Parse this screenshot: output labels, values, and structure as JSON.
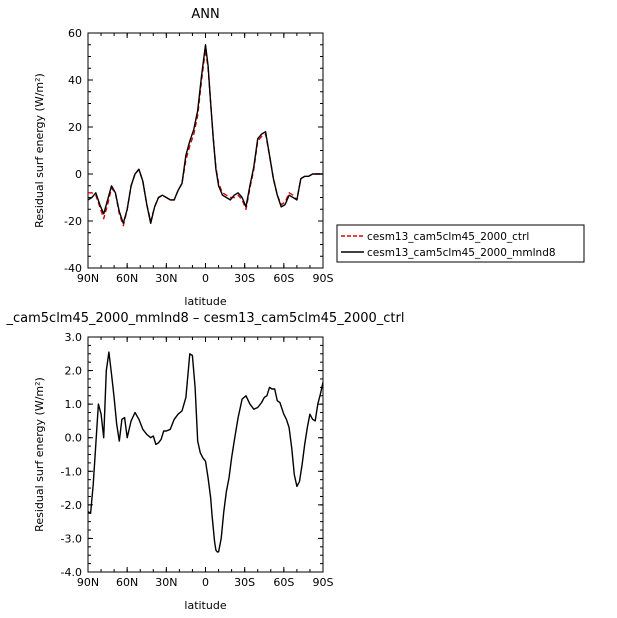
{
  "chart_data": [
    {
      "type": "line",
      "title": "ANN",
      "xlabel": "latitude",
      "ylabel": "Residual surf energy  (W/m²)",
      "xlim": [
        -90,
        90
      ],
      "ylim": [
        -40,
        60
      ],
      "x_ticks": [
        {
          "value": -90,
          "label": "90N"
        },
        {
          "value": -60,
          "label": "60N"
        },
        {
          "value": -30,
          "label": "30N"
        },
        {
          "value": 0,
          "label": "0"
        },
        {
          "value": 30,
          "label": "30S"
        },
        {
          "value": 60,
          "label": "60S"
        },
        {
          "value": 90,
          "label": "90S"
        }
      ],
      "y_ticks": [
        {
          "value": -40,
          "label": "-40"
        },
        {
          "value": -20,
          "label": "-20"
        },
        {
          "value": 0,
          "label": "0"
        },
        {
          "value": 20,
          "label": "20"
        },
        {
          "value": 40,
          "label": "40"
        },
        {
          "value": 60,
          "label": "60"
        }
      ],
      "legend": {
        "placement": "right-outside"
      },
      "series": [
        {
          "name": "cesm13_cam5clm45_2000_ctrl",
          "color": "#dd0000",
          "style": "dashed",
          "x": [
            -90,
            -87,
            -84,
            -81,
            -78,
            -75,
            -72,
            -69,
            -66,
            -63,
            -60,
            -57,
            -54,
            -51,
            -48,
            -45,
            -42,
            -39,
            -36,
            -33,
            -30,
            -27,
            -24,
            -21,
            -18,
            -15,
            -12,
            -9,
            -6,
            -3,
            0,
            2,
            4,
            6,
            8,
            10,
            13,
            16,
            19,
            22,
            25,
            28,
            31,
            34,
            37,
            40,
            43,
            46,
            49,
            52,
            55,
            58,
            61,
            64,
            67,
            70,
            73,
            76,
            79,
            82,
            85,
            88,
            90
          ],
          "y": [
            -8,
            -8,
            -9,
            -14,
            -19,
            -13,
            -6,
            -8,
            -17,
            -22,
            -15,
            -5,
            0,
            2,
            -3,
            -13,
            -20,
            -14,
            -10,
            -9,
            -10,
            -11,
            -11,
            -7,
            -4,
            6,
            12,
            17,
            25,
            40,
            53,
            45,
            30,
            15,
            3,
            -4,
            -8,
            -9,
            -10,
            -10,
            -9,
            -11,
            -15,
            -6,
            2,
            14,
            16,
            17,
            8,
            -2,
            -9,
            -13,
            -12,
            -8,
            -9,
            -11,
            -2,
            -1,
            -1,
            0,
            0,
            0,
            0
          ]
        },
        {
          "name": "cesm13_cam5clm45_2000_mmlnd8",
          "color": "#000000",
          "style": "solid",
          "x": [
            -90,
            -87,
            -84,
            -81,
            -78,
            -75,
            -72,
            -69,
            -66,
            -63,
            -60,
            -57,
            -54,
            -51,
            -48,
            -45,
            -42,
            -39,
            -36,
            -33,
            -30,
            -27,
            -24,
            -21,
            -18,
            -15,
            -12,
            -9,
            -6,
            -3,
            0,
            2,
            4,
            6,
            8,
            10,
            13,
            16,
            19,
            22,
            25,
            28,
            31,
            34,
            37,
            40,
            43,
            46,
            49,
            52,
            55,
            58,
            61,
            64,
            67,
            70,
            73,
            76,
            79,
            82,
            85,
            88,
            90
          ],
          "y": [
            -11,
            -10,
            -8,
            -13,
            -17,
            -11,
            -5,
            -8,
            -16,
            -21,
            -15,
            -5,
            0,
            2,
            -3,
            -13,
            -21,
            -14,
            -10,
            -9,
            -10,
            -11,
            -11,
            -7,
            -4,
            8,
            14,
            19,
            27,
            42,
            55,
            46,
            30,
            15,
            2,
            -5,
            -9,
            -10,
            -11,
            -9,
            -8,
            -10,
            -14,
            -5,
            3,
            15,
            17,
            18,
            8,
            -2,
            -9,
            -14,
            -13,
            -9,
            -10,
            -11,
            -2,
            -1,
            -1,
            0,
            0,
            0,
            0
          ]
        }
      ]
    },
    {
      "type": "line",
      "title": "_cam5clm45_2000_mmlnd8 – cesm13_cam5clm45_2000_ctrl",
      "xlabel": "latitude",
      "ylabel": "Residual surf energy  (W/m²)",
      "xlim": [
        -90,
        90
      ],
      "ylim": [
        -4,
        3
      ],
      "x_ticks": [
        {
          "value": -90,
          "label": "90N"
        },
        {
          "value": -60,
          "label": "60N"
        },
        {
          "value": -30,
          "label": "30N"
        },
        {
          "value": 0,
          "label": "0"
        },
        {
          "value": 30,
          "label": "30S"
        },
        {
          "value": 60,
          "label": "60S"
        },
        {
          "value": 90,
          "label": "90S"
        }
      ],
      "y_ticks": [
        {
          "value": -4,
          "label": "-4.0"
        },
        {
          "value": -3,
          "label": "-3.0"
        },
        {
          "value": -2,
          "label": "-2.0"
        },
        {
          "value": -1,
          "label": "-1.0"
        },
        {
          "value": 0,
          "label": "0.0"
        },
        {
          "value": 1,
          "label": "1.0"
        },
        {
          "value": 2,
          "label": "2.0"
        },
        {
          "value": 3,
          "label": "3.0"
        }
      ],
      "series": [
        {
          "color": "#000000",
          "style": "solid",
          "x": [
            -90,
            -88,
            -86,
            -84,
            -82,
            -80,
            -78,
            -76,
            -74,
            -72,
            -70,
            -68,
            -66,
            -64,
            -62,
            -60,
            -57,
            -54,
            -51,
            -48,
            -45,
            -42,
            -40,
            -38,
            -36,
            -34,
            -32,
            -30,
            -27,
            -24,
            -21,
            -18,
            -15,
            -12,
            -10,
            -8,
            -6,
            -4,
            -2,
            0,
            2,
            4,
            5,
            6,
            7,
            8,
            9,
            10,
            12,
            14,
            16,
            18,
            20,
            22,
            25,
            28,
            31,
            34,
            37,
            40,
            43,
            45,
            47,
            49,
            51,
            53,
            55,
            57,
            60,
            62,
            64,
            66,
            68,
            70,
            72,
            74,
            76,
            78,
            80,
            82,
            84,
            86,
            88,
            90
          ],
          "y": [
            -2.2,
            -2.25,
            -1.4,
            -0.2,
            1.0,
            0.7,
            0.0,
            2.0,
            2.55,
            1.9,
            1.2,
            0.4,
            -0.1,
            0.55,
            0.6,
            0.0,
            0.5,
            0.75,
            0.55,
            0.25,
            0.1,
            0.0,
            0.05,
            -0.2,
            -0.15,
            -0.05,
            0.2,
            0.2,
            0.25,
            0.55,
            0.7,
            0.8,
            1.2,
            2.5,
            2.45,
            1.5,
            -0.1,
            -0.45,
            -0.6,
            -0.7,
            -1.2,
            -1.8,
            -2.3,
            -2.7,
            -3.1,
            -3.35,
            -3.4,
            -3.4,
            -3.0,
            -2.2,
            -1.6,
            -1.2,
            -0.6,
            -0.1,
            0.6,
            1.15,
            1.25,
            1.0,
            0.85,
            0.9,
            1.05,
            1.2,
            1.25,
            1.5,
            1.45,
            1.45,
            1.1,
            1.05,
            0.7,
            0.55,
            0.3,
            -0.3,
            -1.1,
            -1.45,
            -1.3,
            -0.8,
            -0.2,
            0.3,
            0.7,
            0.55,
            0.5,
            1.0,
            1.3,
            1.65
          ]
        }
      ]
    }
  ]
}
